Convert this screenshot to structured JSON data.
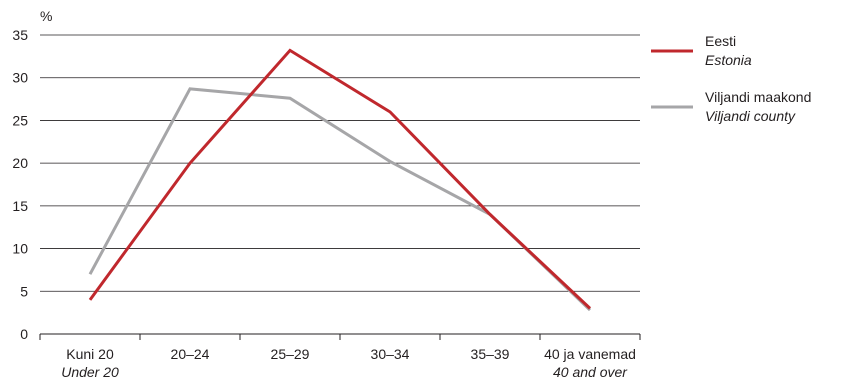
{
  "chart_data": {
    "type": "line",
    "ylabel": "%",
    "ylim": [
      0,
      35
    ],
    "yticks": [
      0,
      5,
      10,
      15,
      20,
      25,
      30,
      35
    ],
    "grid": true,
    "legend_position": "right",
    "categories": [
      {
        "line1": "Kuni 20",
        "line2": "Under 20"
      },
      {
        "line1": "20–24",
        "line2": ""
      },
      {
        "line1": "25–29",
        "line2": ""
      },
      {
        "line1": "30–34",
        "line2": ""
      },
      {
        "line1": "35–39",
        "line2": ""
      },
      {
        "line1": "40 ja vanemad",
        "line2": "40 and over"
      }
    ],
    "series": [
      {
        "name": "Eesti",
        "name_en": "Estonia",
        "color": "#c0282d",
        "values": [
          4,
          20,
          33.2,
          26,
          14,
          3
        ]
      },
      {
        "name": "Viljandi maakond",
        "name_en": "Viljandi county",
        "color": "#a6a6a8",
        "values": [
          7,
          28.7,
          27.6,
          20.2,
          14,
          2.8
        ]
      }
    ]
  }
}
